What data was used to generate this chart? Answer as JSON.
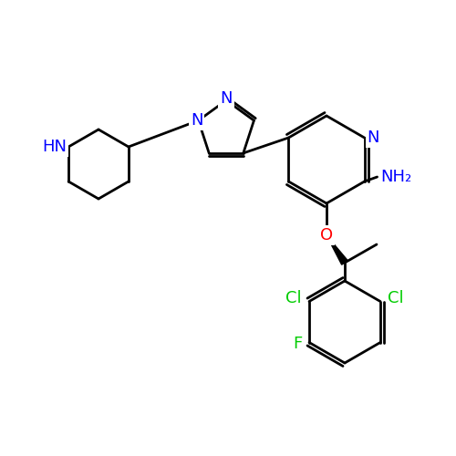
{
  "background_color": "#ffffff",
  "atom_colors": {
    "N": "#0000ff",
    "O": "#ff0000",
    "Cl": "#00cc00",
    "F": "#00cc00",
    "C": "#000000",
    "H": "#000000",
    "NH": "#0000ff",
    "AM": "#0000ff"
  },
  "bond_color": "#000000",
  "bond_width": 2.0,
  "font_size_atom": 13,
  "font_size_label": 13
}
